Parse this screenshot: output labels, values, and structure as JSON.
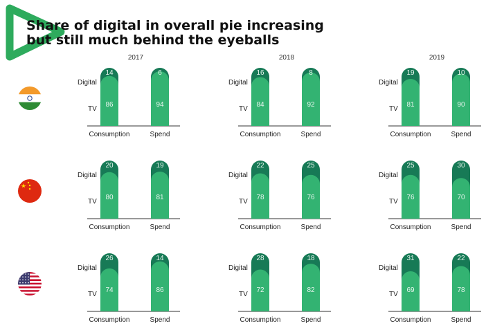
{
  "title": "Share of digital in overall pie increasing but still much behind the eyeballs",
  "colors": {
    "digital": "#177a56",
    "tv": "#33b372",
    "axis": "#333333",
    "logo": "#2eab5d"
  },
  "icons": {
    "logo": "green-triangle-logo",
    "flags": [
      "india-flag-icon",
      "china-flag-icon",
      "usa-flag-icon"
    ]
  },
  "chart_data": {
    "type": "bar",
    "stacked": true,
    "years": [
      "2017",
      "2018",
      "2019"
    ],
    "categories": [
      "Consumption",
      "Spend"
    ],
    "segment_labels": [
      "Digital",
      "TV"
    ],
    "countries": [
      {
        "flag": "india-flag-icon",
        "digital": [
          [
            14,
            6
          ],
          [
            16,
            8
          ],
          [
            19,
            10
          ]
        ],
        "tv": [
          [
            86,
            94
          ],
          [
            84,
            92
          ],
          [
            81,
            90
          ]
        ]
      },
      {
        "flag": "china-flag-icon",
        "digital": [
          [
            20,
            19
          ],
          [
            22,
            25
          ],
          [
            25,
            30
          ]
        ],
        "tv": [
          [
            80,
            81
          ],
          [
            78,
            76
          ],
          [
            76,
            70
          ]
        ]
      },
      {
        "flag": "usa-flag-icon",
        "digital": [
          [
            26,
            14
          ],
          [
            28,
            18
          ],
          [
            31,
            22
          ]
        ],
        "tv": [
          [
            74,
            86
          ],
          [
            72,
            82
          ],
          [
            69,
            78
          ]
        ]
      }
    ]
  }
}
